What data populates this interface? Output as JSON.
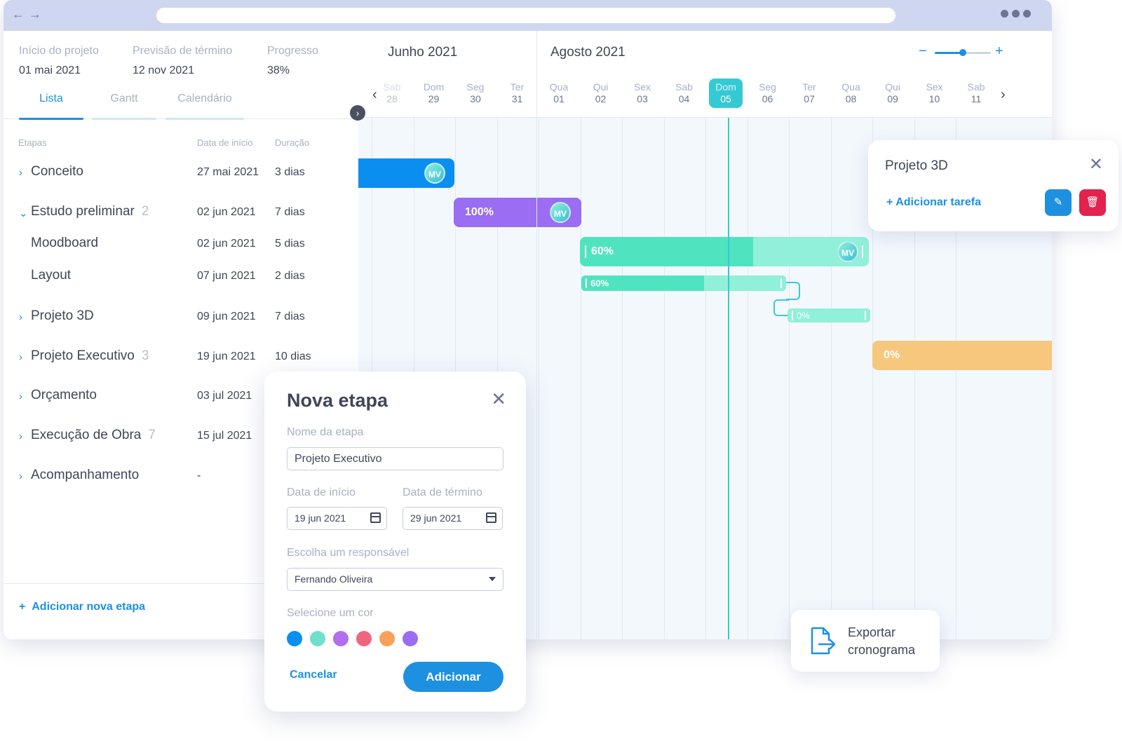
{
  "summary": [
    {
      "label": "Início do projeto",
      "value": "01 mai 2021"
    },
    {
      "label": "Previsão de término",
      "value": "12 nov 2021"
    },
    {
      "label": "Progresso",
      "value": "38%"
    }
  ],
  "tabs": [
    {
      "label": "Lista",
      "active": true
    },
    {
      "label": "Gantt",
      "active": false
    },
    {
      "label": "Calendário",
      "active": false
    }
  ],
  "table_headers": {
    "stage": "Etapas",
    "start": "Data de início",
    "duration": "Duração"
  },
  "rows": [
    {
      "name": "Conceito",
      "count": "",
      "date": "27 mai 2021",
      "duration": "3 dias",
      "chevron": "chevron-right"
    },
    {
      "name": "Estudo preliminar",
      "count": "2",
      "date": "02 jun 2021",
      "duration": "7 dias",
      "chevron": "chevron-down"
    },
    {
      "name": "Moodboard",
      "count": "",
      "date": "02 jun 2021",
      "duration": "5 dias",
      "chevron": ""
    },
    {
      "name": "Layout",
      "count": "",
      "date": "07 jun 2021",
      "duration": "2 dias",
      "chevron": ""
    },
    {
      "name": "Projeto 3D",
      "count": "",
      "date": "09 jun 2021",
      "duration": "7 dias",
      "chevron": "chevron-right"
    },
    {
      "name": "Projeto Executivo",
      "count": "3",
      "date": "19 jun 2021",
      "duration": "10 dias",
      "chevron": "chevron-right"
    },
    {
      "name": "Orçamento",
      "count": "",
      "date": "03 jul 2021",
      "duration": "",
      "chevron": "chevron-right"
    },
    {
      "name": "Execução de Obra",
      "count": "7",
      "date": "15 jul 2021",
      "duration": "",
      "chevron": "chevron-right"
    },
    {
      "name": "Acompanhamento",
      "count": "",
      "date": "-",
      "duration": "",
      "chevron": "chevron-right"
    }
  ],
  "add_stage_label": "Adicionar nova etapa",
  "gantt": {
    "months": [
      "Junho 2021",
      "Agosto 2021"
    ],
    "days": [
      {
        "dow": "Sab",
        "num": "28"
      },
      {
        "dow": "Dom",
        "num": "29"
      },
      {
        "dow": "Seg",
        "num": "30"
      },
      {
        "dow": "Ter",
        "num": "31"
      },
      {
        "dow": "Qua",
        "num": "01"
      },
      {
        "dow": "Qui",
        "num": "02"
      },
      {
        "dow": "Sex",
        "num": "03"
      },
      {
        "dow": "Sab",
        "num": "04"
      },
      {
        "dow": "Dom",
        "num": "05",
        "today": true
      },
      {
        "dow": "Seg",
        "num": "06"
      },
      {
        "dow": "Ter",
        "num": "07"
      },
      {
        "dow": "Qua",
        "num": "08"
      },
      {
        "dow": "Qui",
        "num": "09"
      },
      {
        "dow": "Sex",
        "num": "10"
      },
      {
        "dow": "Sab",
        "num": "11"
      }
    ],
    "zoom_minus": "−",
    "zoom_plus": "+",
    "zoom_level": 0.5,
    "bars": [
      {
        "id": "conceito",
        "label": "",
        "avatar": "MV",
        "color": "#0a8ef0",
        "progress": 1
      },
      {
        "id": "estudo",
        "label": "100%",
        "avatar": "MV",
        "color": "#9a6df2",
        "progress": 1
      },
      {
        "id": "moodboard",
        "label": "60%",
        "avatar": "MV",
        "color": "#4fe4bf",
        "track": "#90f0d8",
        "progress": 0.6
      },
      {
        "id": "layout",
        "label": "60%",
        "avatar": "",
        "color": "#4fe4bf",
        "track": "#90f0d8",
        "progress": 0.6
      },
      {
        "id": "sub",
        "label": "0%",
        "avatar": "",
        "color": "#90f0d8",
        "progress": 0
      },
      {
        "id": "executivo",
        "label": "0%",
        "avatar": "",
        "color": "#f7c77e",
        "progress": 0
      }
    ]
  },
  "popover": {
    "title": "Projeto 3D",
    "add_task": "+ Adicionar tarefa"
  },
  "modal": {
    "title": "Nova etapa",
    "name_label": "Nome da etapa",
    "name_value": "Projeto Executivo",
    "start_label": "Data de início",
    "start_value": "19 jun 2021",
    "end_label": "Data de término",
    "end_value": "29 jun 2021",
    "owner_label": "Escolha um responsável",
    "owner_value": "Fernando Oliveira",
    "color_label": "Selecione um cor",
    "colors": [
      "#0a8ef0",
      "#6fe0cb",
      "#b26ef0",
      "#f0657e",
      "#f7a15c",
      "#9a6df2"
    ],
    "cancel": "Cancelar",
    "submit": "Adicionar"
  },
  "export_label_1": "Exportar",
  "export_label_2": "cronograma"
}
